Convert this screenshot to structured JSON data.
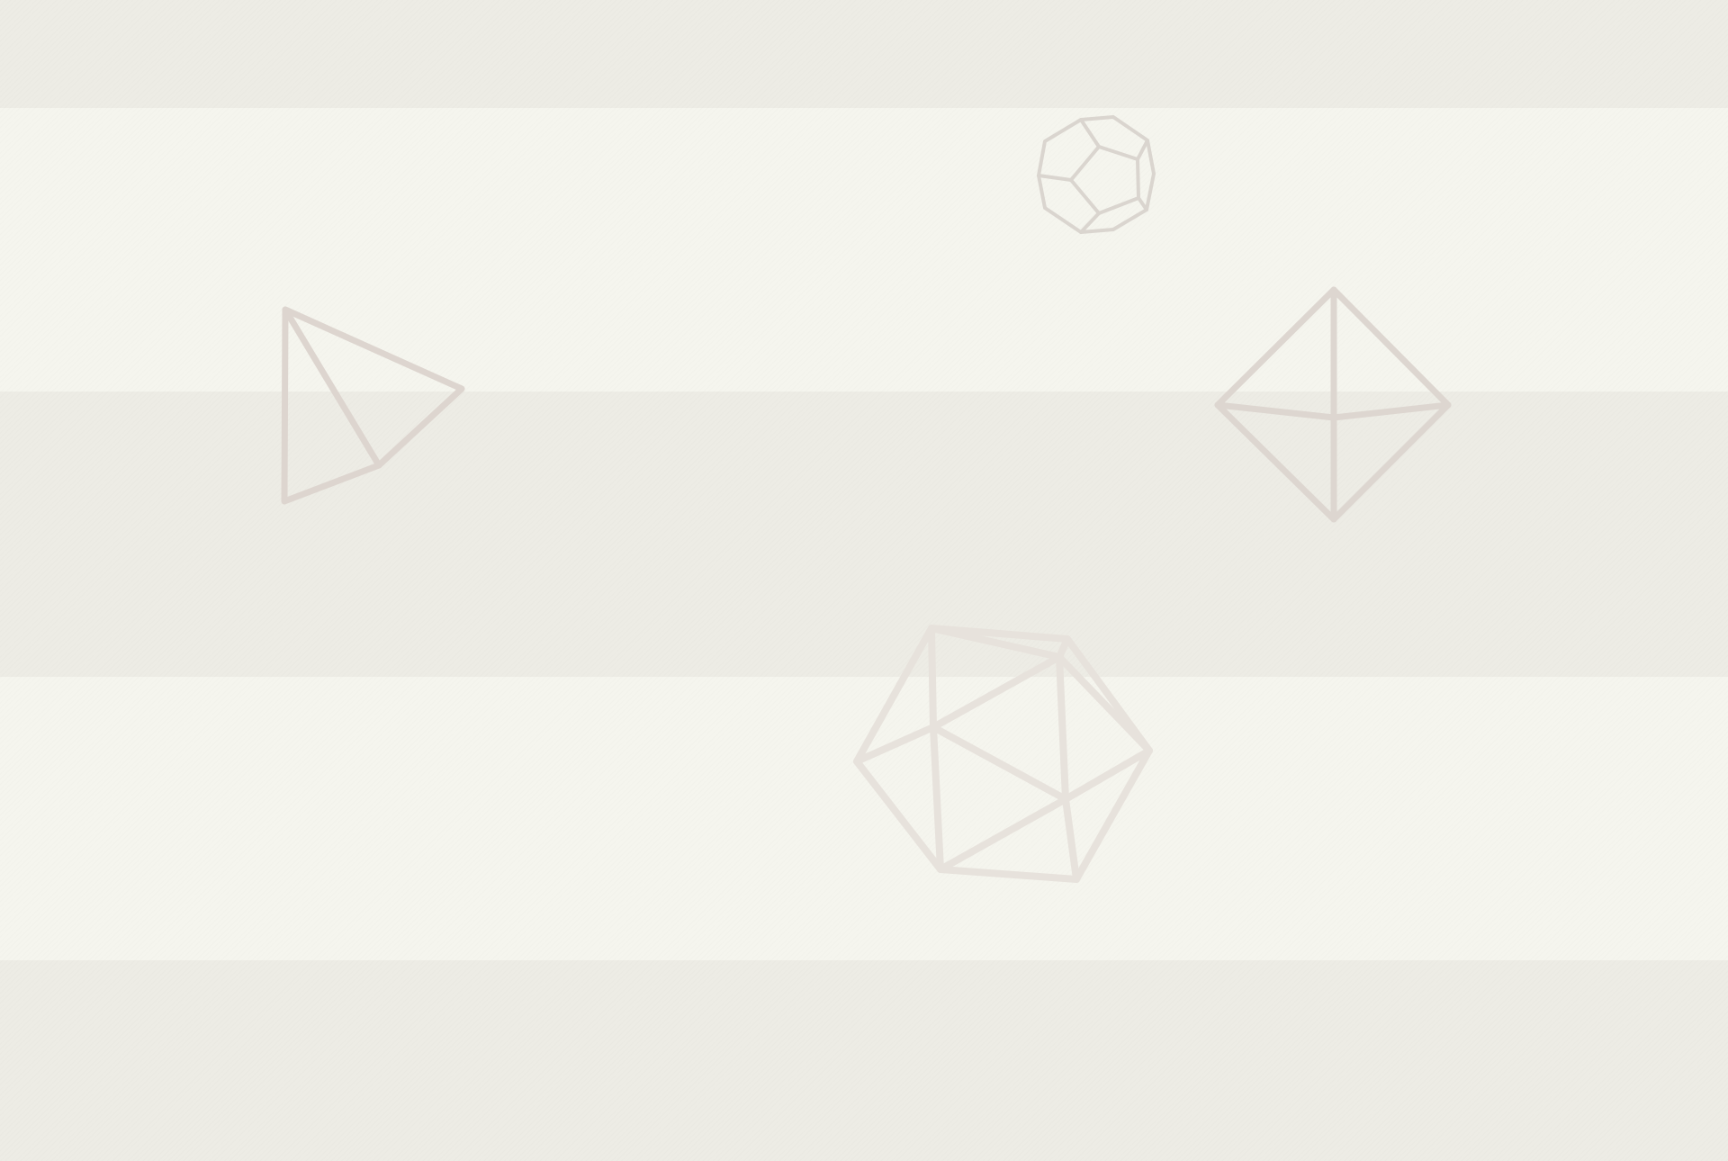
{
  "background": {
    "band_colors": [
      "#edece5",
      "#f5f5ee"
    ],
    "texture": "fine-diagonal-hatch"
  },
  "shapes": [
    {
      "name": "dodecahedron-icon",
      "stroke": "#dad5cf"
    },
    {
      "name": "tetrahedron-icon",
      "stroke": "#ddd5cf"
    },
    {
      "name": "octahedron-icon",
      "stroke": "#ddd6d0"
    },
    {
      "name": "icosahedron-icon",
      "stroke": "#e7e2dc"
    }
  ]
}
